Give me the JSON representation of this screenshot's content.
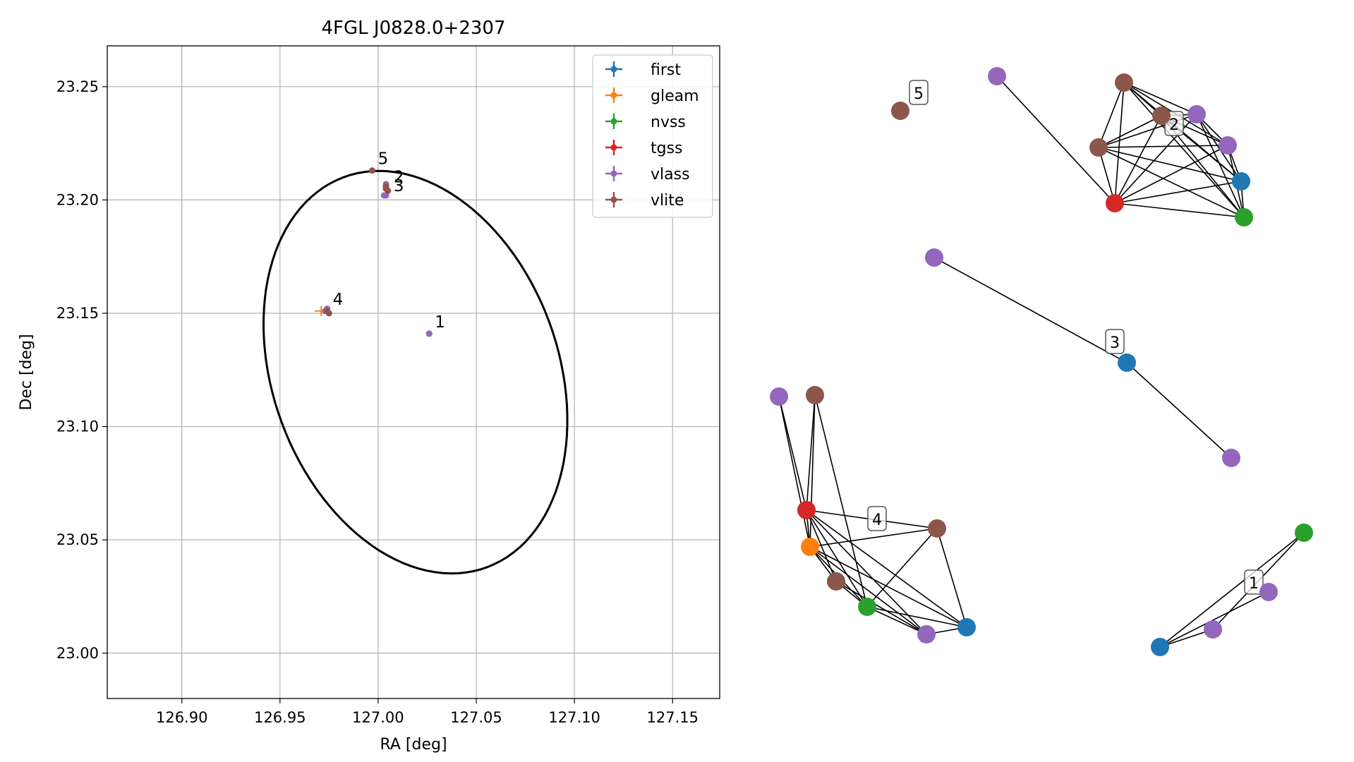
{
  "colors": {
    "first": "#1f77b4",
    "gleam": "#ff7f0e",
    "nvss": "#2ca02c",
    "tgss": "#d62728",
    "vlass": "#9467bd",
    "vlite": "#8c564b"
  },
  "chart_data": [
    {
      "type": "scatter",
      "title": "4FGL J0828.0+2307",
      "xlabel": "RA [deg]",
      "ylabel": "Dec [deg]",
      "xlim": [
        126.862,
        127.174
      ],
      "ylim": [
        22.98,
        23.268
      ],
      "xticks": [
        126.9,
        126.95,
        127.0,
        127.05,
        127.1,
        127.15
      ],
      "xtick_labels": [
        "126.90",
        "126.95",
        "127.00",
        "127.05",
        "127.10",
        "127.15"
      ],
      "yticks": [
        23.0,
        23.05,
        23.1,
        23.15,
        23.2,
        23.25
      ],
      "ytick_labels": [
        "23.00",
        "23.05",
        "23.10",
        "23.15",
        "23.20",
        "23.25"
      ],
      "grid": true,
      "legend_position": "top-right",
      "legend": [
        "first",
        "gleam",
        "nvss",
        "tgss",
        "vlass",
        "vlite"
      ],
      "ellipse": {
        "center": [
          127.019,
          23.124
        ],
        "semi_major": 0.094,
        "semi_minor": 0.071,
        "angle_deg": 30
      },
      "series": [
        {
          "name": "first",
          "points": [
            [
              127.026,
              23.141
            ],
            [
              127.004,
              23.205
            ],
            [
              126.974,
              23.151
            ]
          ]
        },
        {
          "name": "gleam",
          "points": [
            [
              126.971,
              23.151
            ]
          ]
        },
        {
          "name": "nvss",
          "points": [
            [
              127.026,
              23.141
            ],
            [
              127.004,
              23.205
            ],
            [
              126.974,
              23.151
            ]
          ]
        },
        {
          "name": "tgss",
          "points": [
            [
              127.004,
              23.205
            ],
            [
              126.974,
              23.151
            ]
          ]
        },
        {
          "name": "vlass",
          "points": [
            [
              127.026,
              23.141
            ],
            [
              127.004,
              23.206
            ],
            [
              127.004,
              23.202
            ],
            [
              127.003,
              23.202
            ],
            [
              126.974,
              23.152
            ],
            [
              126.973,
              23.151
            ],
            [
              127.004,
              23.207
            ]
          ]
        },
        {
          "name": "vlite",
          "points": [
            [
              126.997,
              23.213
            ],
            [
              127.005,
              23.204
            ],
            [
              126.975,
              23.15
            ],
            [
              127.004,
              23.206
            ],
            [
              126.974,
              23.151
            ]
          ]
        }
      ],
      "annotations": [
        {
          "text": "1",
          "x": 127.026,
          "y": 23.141
        },
        {
          "text": "2",
          "x": 127.005,
          "y": 23.205
        },
        {
          "text": "3",
          "x": 127.005,
          "y": 23.201
        },
        {
          "text": "4",
          "x": 126.974,
          "y": 23.151
        },
        {
          "text": "5",
          "x": 126.997,
          "y": 23.213
        }
      ]
    },
    {
      "type": "network",
      "groups": [
        {
          "label": "5",
          "nodes": [
            {
              "id": "v1",
              "color": "vlite"
            }
          ],
          "edges": []
        },
        {
          "label": "2",
          "nodes": [
            {
              "id": "vs1",
              "color": "vlass"
            },
            {
              "id": "vl1",
              "color": "vlite"
            },
            {
              "id": "vl2",
              "color": "vlite"
            },
            {
              "id": "vs2",
              "color": "vlass"
            },
            {
              "id": "vl3",
              "color": "vlite"
            },
            {
              "id": "vs3",
              "color": "vlass"
            },
            {
              "id": "f1",
              "color": "first"
            },
            {
              "id": "t1",
              "color": "tgss"
            },
            {
              "id": "n1",
              "color": "nvss"
            }
          ],
          "edges": [
            [
              "vs1",
              "t1"
            ],
            [
              "vl1",
              "vl2"
            ],
            [
              "vl1",
              "vs2"
            ],
            [
              "vl1",
              "vs3"
            ],
            [
              "vl1",
              "f1"
            ],
            [
              "vl1",
              "n1"
            ],
            [
              "vl1",
              "t1"
            ],
            [
              "vl1",
              "vl3"
            ],
            [
              "vl2",
              "vs2"
            ],
            [
              "vl2",
              "vs3"
            ],
            [
              "vl2",
              "f1"
            ],
            [
              "vl2",
              "n1"
            ],
            [
              "vl2",
              "t1"
            ],
            [
              "vl2",
              "vl3"
            ],
            [
              "vs2",
              "vs3"
            ],
            [
              "vs2",
              "f1"
            ],
            [
              "vs2",
              "n1"
            ],
            [
              "vs2",
              "t1"
            ],
            [
              "vs2",
              "vl3"
            ],
            [
              "vl3",
              "vs3"
            ],
            [
              "vl3",
              "f1"
            ],
            [
              "vl3",
              "n1"
            ],
            [
              "vl3",
              "t1"
            ],
            [
              "vs3",
              "f1"
            ],
            [
              "vs3",
              "n1"
            ],
            [
              "vs3",
              "t1"
            ],
            [
              "f1",
              "n1"
            ],
            [
              "f1",
              "t1"
            ],
            [
              "t1",
              "n1"
            ]
          ]
        },
        {
          "label": "3",
          "nodes": [
            {
              "id": "vs4",
              "color": "vlass"
            },
            {
              "id": "f2",
              "color": "first"
            },
            {
              "id": "vs5",
              "color": "vlass"
            }
          ],
          "edges": [
            [
              "vs4",
              "f2"
            ],
            [
              "f2",
              "vs5"
            ]
          ]
        },
        {
          "label": "4",
          "nodes": [
            {
              "id": "vs6",
              "color": "vlass"
            },
            {
              "id": "vl4",
              "color": "vlite"
            },
            {
              "id": "t2",
              "color": "tgss"
            },
            {
              "id": "g1",
              "color": "gleam"
            },
            {
              "id": "vl5",
              "color": "vlite"
            },
            {
              "id": "n2",
              "color": "nvss"
            },
            {
              "id": "vs7",
              "color": "vlass"
            },
            {
              "id": "f3",
              "color": "first"
            },
            {
              "id": "vl6",
              "color": "vlite"
            }
          ],
          "edges": [
            [
              "vs6",
              "t2"
            ],
            [
              "vs6",
              "g1"
            ],
            [
              "vl4",
              "t2"
            ],
            [
              "vl4",
              "g1"
            ],
            [
              "vl4",
              "n2"
            ],
            [
              "t2",
              "g1"
            ],
            [
              "t2",
              "vl6"
            ],
            [
              "t2",
              "vl5"
            ],
            [
              "t2",
              "n2"
            ],
            [
              "t2",
              "vs7"
            ],
            [
              "t2",
              "f3"
            ],
            [
              "g1",
              "vl6"
            ],
            [
              "g1",
              "vl5"
            ],
            [
              "g1",
              "n2"
            ],
            [
              "g1",
              "vs7"
            ],
            [
              "g1",
              "f3"
            ],
            [
              "vl5",
              "n2"
            ],
            [
              "vl5",
              "vs7"
            ],
            [
              "n2",
              "vl6"
            ],
            [
              "n2",
              "vs7"
            ],
            [
              "n2",
              "f3"
            ],
            [
              "vl6",
              "f3"
            ],
            [
              "vs7",
              "f3"
            ]
          ]
        },
        {
          "label": "1",
          "nodes": [
            {
              "id": "n3",
              "color": "nvss"
            },
            {
              "id": "vs8",
              "color": "vlass"
            },
            {
              "id": "vs9",
              "color": "vlass"
            },
            {
              "id": "f4",
              "color": "first"
            }
          ],
          "edges": [
            [
              "n3",
              "f4"
            ],
            [
              "n3",
              "vs9"
            ],
            [
              "vs8",
              "f4"
            ],
            [
              "f4",
              "vs9"
            ]
          ]
        }
      ]
    }
  ]
}
